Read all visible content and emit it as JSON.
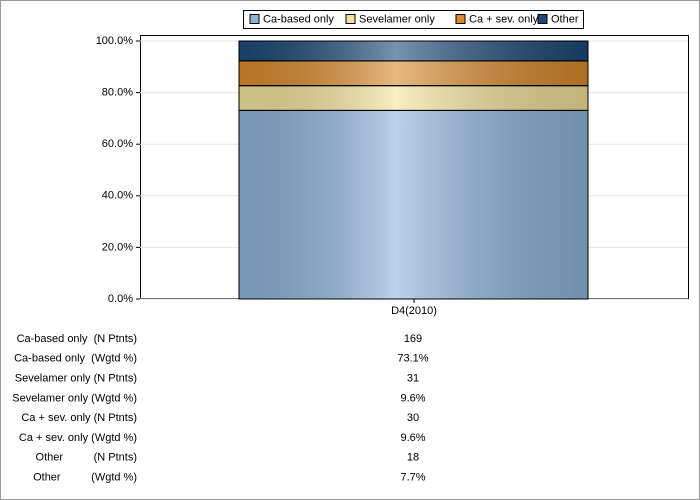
{
  "chart_data": {
    "type": "stacked_bar",
    "categories": [
      "D4(2010)"
    ],
    "series": [
      {
        "name": "Ca-based only",
        "color": "#8db3d9",
        "values": [
          73.1
        ]
      },
      {
        "name": "Sevelamer only",
        "color": "#f3e39a",
        "values": [
          9.6
        ]
      },
      {
        "name": "Ca + sev. only",
        "color": "#d98b2b",
        "values": [
          9.6
        ]
      },
      {
        "name": "Other",
        "color": "#1c4a78",
        "values": [
          7.7
        ]
      }
    ],
    "ylim": [
      0,
      100
    ],
    "yticks": [
      {
        "value": 0,
        "label": "0.0%"
      },
      {
        "value": 20,
        "label": "20.0%"
      },
      {
        "value": 40,
        "label": "40.0%"
      },
      {
        "value": 60,
        "label": "60.0%"
      },
      {
        "value": 80,
        "label": "80.0%"
      },
      {
        "value": 100,
        "label": "100.0%"
      }
    ],
    "grid": true,
    "legend": "top"
  },
  "table": {
    "rows": [
      [
        "Ca-based only  (N Ptnts)",
        "169"
      ],
      [
        "Ca-based only  (Wgtd %)",
        "73.1%"
      ],
      [
        "Sevelamer only (N Ptnts)",
        "31"
      ],
      [
        "Sevelamer only (Wgtd %)",
        "9.6%"
      ],
      [
        "Ca + sev. only (N Ptnts)",
        "30"
      ],
      [
        "Ca + sev. only (Wgtd %)",
        "9.6%"
      ],
      [
        "Other          (N Ptnts)",
        "18"
      ],
      [
        "Other          (Wgtd %)",
        "7.7%"
      ]
    ]
  }
}
